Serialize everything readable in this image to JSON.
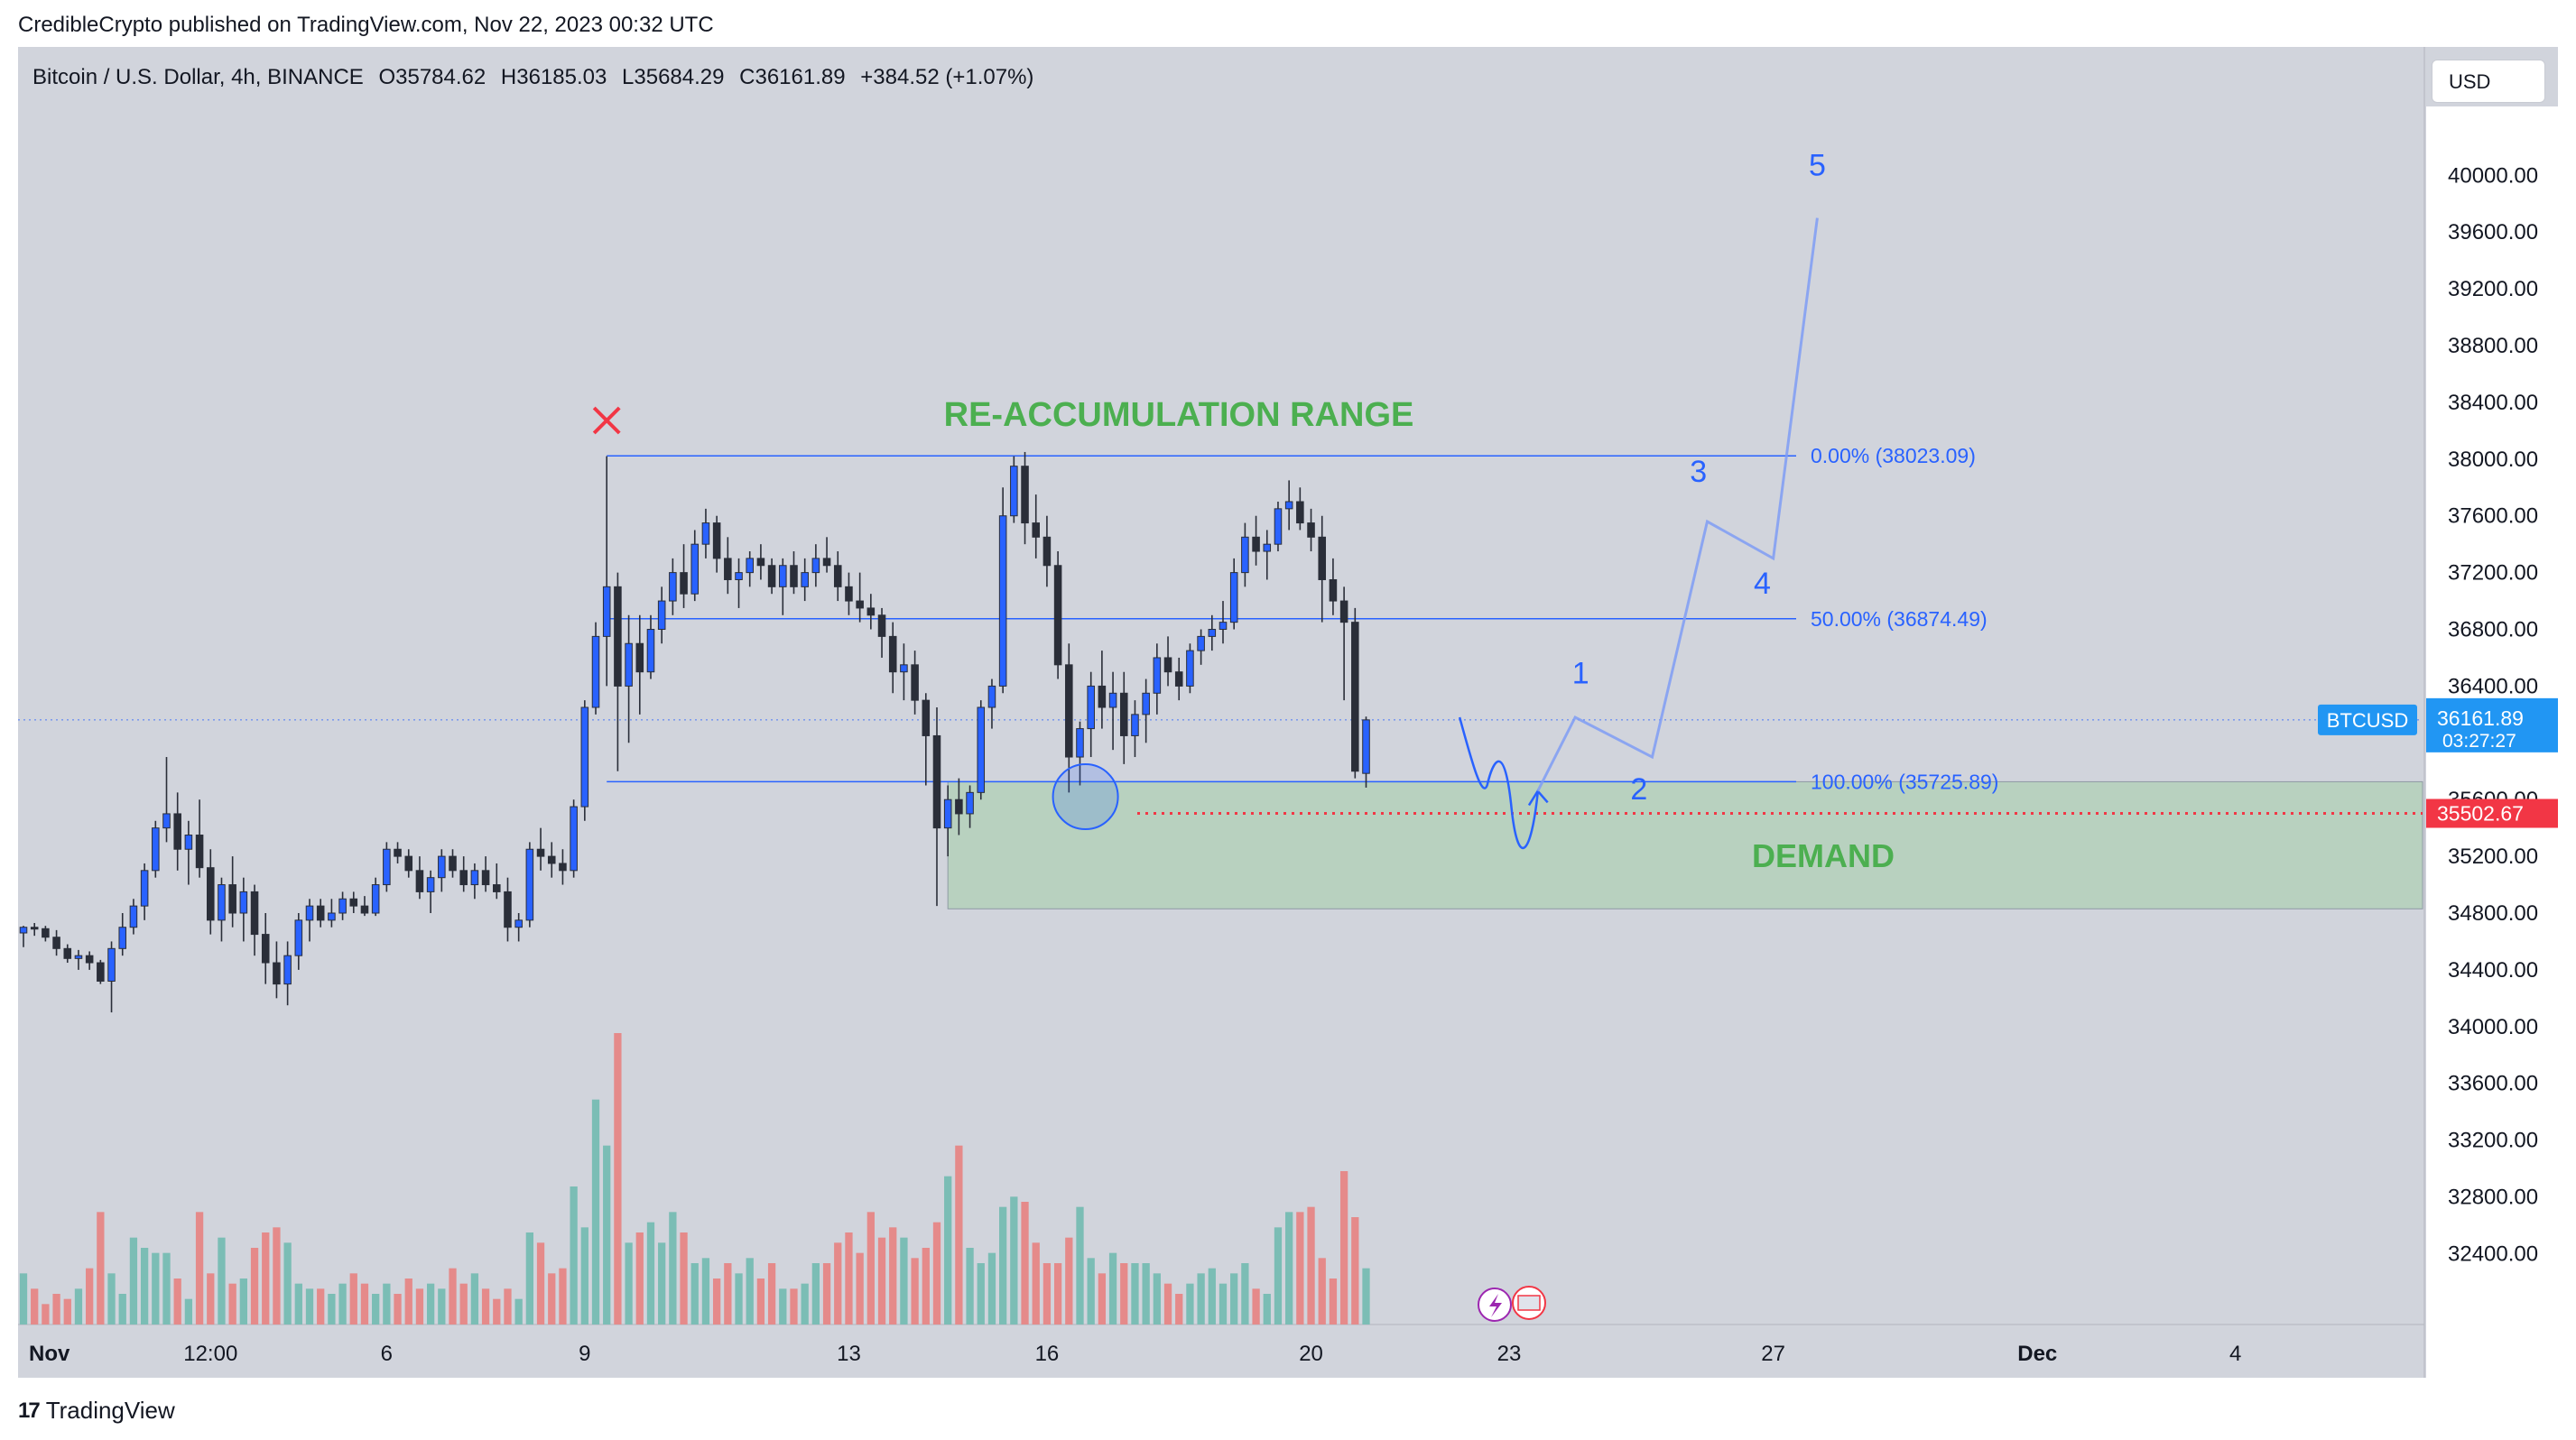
{
  "header": {
    "published_line": "CredibleCrypto published on TradingView.com, Nov 22, 2023 00:32 UTC"
  },
  "symbol": {
    "name": "Bitcoin / U.S. Dollar, 4h, BINANCE",
    "open": "O35784.62",
    "high": "H36185.03",
    "low": "L35684.29",
    "close": "C36161.89",
    "change": "+384.52 (+1.07%)"
  },
  "currency_button": "USD",
  "footer": {
    "logo_mark": "17",
    "logo_text": "TradingView"
  },
  "colors": {
    "up": "#2962ff",
    "down": "#2a2e39",
    "volume_up": "#7bbdb5",
    "volume_down": "#e58a8a",
    "range_text": "#4caf50",
    "fib_line": "#2962ff",
    "projection": "#7f9cf5",
    "demand_zone": "#b8d1bf",
    "marker_red": "#f23645",
    "price_badge": "#2196f3"
  },
  "chart_data": {
    "type": "candlestick",
    "title": "RE-ACCUMULATION RANGE",
    "symbol_label": "BTCUSD",
    "y_range": [
      31900,
      40600
    ],
    "y_ticks": [
      40000,
      39600,
      39200,
      38800,
      38400,
      38000,
      37600,
      37200,
      36800,
      36400,
      36000,
      35600,
      35200,
      34800,
      34400,
      34000,
      33600,
      33200,
      32800,
      32400
    ],
    "y_tick_labels": [
      "40000.00",
      "39600.00",
      "39200.00",
      "38800.00",
      "38400.00",
      "38000.00",
      "37600.00",
      "37200.00",
      "36800.00",
      "36400.00",
      "36000.00",
      "35600.00",
      "35200.00",
      "34800.00",
      "34400.00",
      "34000.00",
      "33600.00",
      "33200.00",
      "32800.00",
      "32400.00"
    ],
    "x_domain": [
      0,
      218
    ],
    "x_ticks": [
      {
        "label": "Nov",
        "x": 0
      },
      {
        "label": "12:00",
        "x": 17
      },
      {
        "label": "6",
        "x": 33
      },
      {
        "label": "9",
        "x": 51
      },
      {
        "label": "13",
        "x": 75
      },
      {
        "label": "16",
        "x": 93
      },
      {
        "label": "20",
        "x": 117
      },
      {
        "label": "23",
        "x": 135
      },
      {
        "label": "27",
        "x": 159
      },
      {
        "label": "Dec",
        "x": 183
      },
      {
        "label": "4",
        "x": 201
      }
    ],
    "current_price": {
      "value": 36161.89,
      "label": "36161.89",
      "countdown": "03:27:27"
    },
    "demand_line": {
      "value": 35502.67,
      "label": "35502.67"
    },
    "fib_levels": [
      {
        "label": "0.00% (38023.09)",
        "value": 38023.09
      },
      {
        "label": "50.00% (36874.49)",
        "value": 36874.49
      },
      {
        "label": "100.00% (35725.89)",
        "value": 35725.89
      }
    ],
    "demand_zone": {
      "label": "DEMAND",
      "top": 35725.89,
      "bottom": 34830,
      "x_start": 84
    },
    "wave_projection": [
      {
        "label": "",
        "x": 130.5,
        "y": 36180
      },
      {
        "label": "",
        "x": 134,
        "y": 35600
      },
      {
        "label": "1",
        "x": 141,
        "y": 36180
      },
      {
        "label": "2",
        "x": 148,
        "y": 35900
      },
      {
        "label": "3",
        "x": 153,
        "y": 37560
      },
      {
        "label": "4",
        "x": 159,
        "y": 37300
      },
      {
        "label": "5",
        "x": 163,
        "y": 39700
      }
    ],
    "candles": [
      [
        34660,
        34710,
        34560,
        34700,
        10
      ],
      [
        34700,
        34730,
        34640,
        34690,
        7
      ],
      [
        34690,
        34710,
        34600,
        34630,
        4
      ],
      [
        34630,
        34680,
        34500,
        34550,
        6
      ],
      [
        34550,
        34580,
        34450,
        34480,
        5
      ],
      [
        34480,
        34540,
        34400,
        34500,
        7
      ],
      [
        34500,
        34530,
        34400,
        34450,
        11
      ],
      [
        34450,
        34470,
        34300,
        34320,
        22
      ],
      [
        34320,
        34600,
        34100,
        34550,
        10
      ],
      [
        34550,
        34800,
        34500,
        34700,
        6
      ],
      [
        34700,
        34900,
        34650,
        34850,
        17
      ],
      [
        34850,
        35150,
        34750,
        35100,
        15
      ],
      [
        35100,
        35450,
        35050,
        35400,
        14
      ],
      [
        35400,
        35900,
        35300,
        35500,
        14
      ],
      [
        35500,
        35650,
        35100,
        35250,
        9
      ],
      [
        35250,
        35450,
        35000,
        35350,
        5
      ],
      [
        35350,
        35600,
        35050,
        35120,
        22
      ],
      [
        35120,
        35250,
        34650,
        34750,
        10
      ],
      [
        34750,
        35050,
        34600,
        35000,
        17
      ],
      [
        35000,
        35200,
        34700,
        34800,
        8
      ],
      [
        34800,
        35050,
        34600,
        34950,
        9
      ],
      [
        34950,
        35000,
        34500,
        34650,
        15
      ],
      [
        34650,
        34800,
        34300,
        34450,
        18
      ],
      [
        34450,
        34600,
        34200,
        34300,
        19
      ],
      [
        34300,
        34600,
        34150,
        34500,
        16
      ],
      [
        34500,
        34800,
        34400,
        34750,
        8
      ],
      [
        34750,
        34900,
        34600,
        34850,
        7
      ],
      [
        34850,
        34900,
        34700,
        34750,
        7
      ],
      [
        34750,
        34900,
        34700,
        34800,
        6
      ],
      [
        34800,
        34950,
        34750,
        34900,
        8
      ],
      [
        34900,
        34950,
        34800,
        34850,
        10
      ],
      [
        34850,
        34920,
        34780,
        34800,
        8
      ],
      [
        34800,
        35050,
        34780,
        35000,
        6
      ],
      [
        35000,
        35300,
        34950,
        35250,
        8
      ],
      [
        35250,
        35300,
        35150,
        35200,
        6
      ],
      [
        35200,
        35250,
        35050,
        35100,
        9
      ],
      [
        35100,
        35200,
        34900,
        34950,
        7
      ],
      [
        34950,
        35100,
        34800,
        35050,
        8
      ],
      [
        35050,
        35250,
        34950,
        35200,
        7
      ],
      [
        35200,
        35250,
        35050,
        35100,
        11
      ],
      [
        35100,
        35200,
        34950,
        35000,
        8
      ],
      [
        35000,
        35150,
        34900,
        35100,
        10
      ],
      [
        35100,
        35200,
        34950,
        35000,
        7
      ],
      [
        35000,
        35150,
        34900,
        34950,
        5
      ],
      [
        34950,
        35050,
        34600,
        34700,
        7
      ],
      [
        34700,
        34800,
        34600,
        34750,
        5
      ],
      [
        34750,
        35300,
        34700,
        35250,
        18
      ],
      [
        35250,
        35400,
        35100,
        35200,
        16
      ],
      [
        35200,
        35300,
        35050,
        35150,
        10
      ],
      [
        35150,
        35250,
        35000,
        35100,
        11
      ],
      [
        35100,
        35600,
        35050,
        35550,
        27
      ],
      [
        35550,
        36300,
        35450,
        36250,
        19
      ],
      [
        36250,
        36850,
        36200,
        36750,
        44
      ],
      [
        36750,
        38020,
        36400,
        37100,
        35
      ],
      [
        37100,
        37200,
        35800,
        36400,
        57
      ],
      [
        36400,
        36900,
        36000,
        36700,
        16
      ],
      [
        36700,
        36900,
        36200,
        36500,
        18
      ],
      [
        36500,
        36900,
        36450,
        36800,
        20
      ],
      [
        36800,
        37100,
        36700,
        37000,
        16
      ],
      [
        37000,
        37300,
        36900,
        37200,
        22
      ],
      [
        37200,
        37400,
        36950,
        37050,
        18
      ],
      [
        37050,
        37500,
        37000,
        37400,
        12
      ],
      [
        37400,
        37650,
        37300,
        37550,
        13
      ],
      [
        37550,
        37600,
        37200,
        37300,
        9
      ],
      [
        37300,
        37450,
        37050,
        37150,
        12
      ],
      [
        37150,
        37300,
        36950,
        37200,
        10
      ],
      [
        37200,
        37350,
        37100,
        37300,
        13
      ],
      [
        37300,
        37400,
        37150,
        37250,
        9
      ],
      [
        37250,
        37300,
        37050,
        37100,
        12
      ],
      [
        37100,
        37300,
        36900,
        37250,
        7
      ],
      [
        37250,
        37350,
        37050,
        37100,
        7
      ],
      [
        37100,
        37300,
        37000,
        37200,
        8
      ],
      [
        37200,
        37400,
        37100,
        37300,
        12
      ],
      [
        37300,
        37450,
        37200,
        37250,
        12
      ],
      [
        37250,
        37350,
        37000,
        37100,
        16
      ],
      [
        37100,
        37200,
        36900,
        37000,
        18
      ],
      [
        37000,
        37200,
        36850,
        36950,
        14
      ],
      [
        36950,
        37050,
        36800,
        36900,
        22
      ],
      [
        36900,
        36950,
        36600,
        36750,
        17
      ],
      [
        36750,
        36850,
        36350,
        36500,
        19
      ],
      [
        36500,
        36700,
        36300,
        36550,
        17
      ],
      [
        36550,
        36650,
        36200,
        36300,
        13
      ],
      [
        36300,
        36350,
        35700,
        36050,
        15
      ],
      [
        36050,
        36250,
        34850,
        35400,
        20
      ],
      [
        35400,
        35700,
        35200,
        35600,
        29
      ],
      [
        35600,
        35750,
        35350,
        35500,
        35
      ],
      [
        35500,
        35700,
        35400,
        35650,
        15
      ],
      [
        35650,
        36300,
        35600,
        36250,
        12
      ],
      [
        36250,
        36450,
        36100,
        36400,
        14
      ],
      [
        36400,
        37800,
        36350,
        37600,
        23
      ],
      [
        37600,
        38020,
        37550,
        37950,
        25
      ],
      [
        37950,
        38050,
        37400,
        37550,
        24
      ],
      [
        37550,
        37750,
        37300,
        37450,
        16
      ],
      [
        37450,
        37600,
        37100,
        37250,
        12
      ],
      [
        37250,
        37350,
        36450,
        36550,
        12
      ],
      [
        36550,
        36700,
        35650,
        35900,
        17
      ],
      [
        35900,
        36150,
        35700,
        36100,
        23
      ],
      [
        36100,
        36500,
        35900,
        36400,
        13
      ],
      [
        36400,
        36650,
        36100,
        36250,
        10
      ],
      [
        36250,
        36500,
        35950,
        36350,
        14
      ],
      [
        36350,
        36500,
        35850,
        36050,
        12
      ],
      [
        36050,
        36300,
        35900,
        36200,
        12
      ],
      [
        36200,
        36450,
        36000,
        36350,
        12
      ],
      [
        36350,
        36700,
        36200,
        36600,
        10
      ],
      [
        36600,
        36750,
        36400,
        36500,
        8
      ],
      [
        36500,
        36600,
        36300,
        36400,
        6
      ],
      [
        36400,
        36700,
        36350,
        36650,
        8
      ],
      [
        36650,
        36800,
        36550,
        36750,
        10
      ],
      [
        36750,
        36900,
        36650,
        36800,
        11
      ],
      [
        36800,
        37000,
        36700,
        36850,
        8
      ],
      [
        36850,
        37300,
        36800,
        37200,
        10
      ],
      [
        37200,
        37550,
        37100,
        37450,
        12
      ],
      [
        37450,
        37600,
        37250,
        37350,
        7
      ],
      [
        37350,
        37500,
        37150,
        37400,
        6
      ],
      [
        37400,
        37700,
        37350,
        37650,
        19
      ],
      [
        37650,
        37850,
        37500,
        37700,
        22
      ],
      [
        37700,
        37800,
        37500,
        37550,
        22
      ],
      [
        37550,
        37650,
        37350,
        37450,
        23
      ],
      [
        37450,
        37600,
        36850,
        37150,
        13
      ],
      [
        37150,
        37300,
        36900,
        37000,
        9
      ],
      [
        37000,
        37100,
        36300,
        36850,
        30
      ],
      [
        36850,
        36950,
        35750,
        35800,
        21
      ],
      [
        35784.62,
        36185.03,
        35684.29,
        36161.89,
        11
      ]
    ]
  }
}
